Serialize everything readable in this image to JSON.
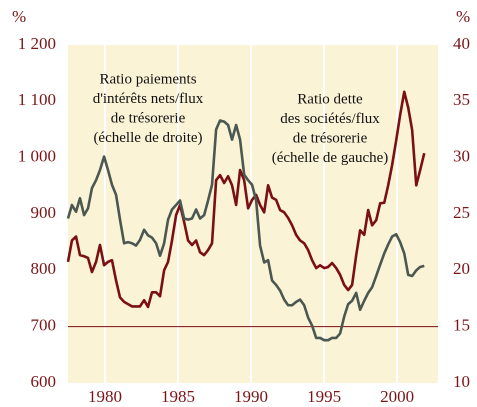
{
  "chart_data": {
    "type": "line",
    "y_unit": "%",
    "y2_unit": "%",
    "annotations": [
      {
        "lines": [
          "Ratio paiements",
          "d'intérêts nets/flux",
          "de trésorerie",
          "(échelle de droite)"
        ]
      },
      {
        "lines": [
          "Ratio dette",
          "des sociétés/flux",
          "de trésorerie",
          "(échelle de gauche)"
        ]
      }
    ],
    "x": [
      1977.47,
      1977.74,
      1978.02,
      1978.29,
      1978.57,
      1978.84,
      1979.11,
      1979.39,
      1979.66,
      1979.94,
      1980.21,
      1980.48,
      1980.76,
      1981.03,
      1981.31,
      1981.58,
      1981.85,
      1982.13,
      1982.4,
      1982.68,
      1982.95,
      1983.22,
      1983.5,
      1983.77,
      1984.05,
      1984.32,
      1984.59,
      1984.87,
      1985.14,
      1985.42,
      1985.69,
      1985.96,
      1986.24,
      1986.51,
      1986.79,
      1987.06,
      1987.33,
      1987.61,
      1987.88,
      1988.16,
      1988.43,
      1988.7,
      1988.98,
      1989.25,
      1989.53,
      1989.8,
      1990.07,
      1990.35,
      1990.62,
      1990.9,
      1991.17,
      1991.44,
      1991.72,
      1991.99,
      1992.27,
      1992.54,
      1992.81,
      1993.09,
      1993.36,
      1993.64,
      1993.91,
      1994.18,
      1994.46,
      1994.73,
      1995.01,
      1995.28,
      1995.55,
      1995.83,
      1996.1,
      1996.38,
      1996.65,
      1996.92,
      1997.2,
      1997.47,
      1997.75,
      1998.02,
      1998.29,
      1998.57,
      1998.84,
      1999.12,
      1999.39,
      1999.66,
      1999.94,
      2000.21,
      2000.49,
      2000.76,
      2001.03,
      2001.31,
      2001.58,
      2001.86
    ],
    "series": [
      {
        "color": "#7a0f14",
        "values": [
          815,
          853,
          860,
          827,
          825,
          822,
          797,
          815,
          845,
          809,
          815,
          818,
          782,
          752,
          744,
          740,
          736,
          736,
          736,
          747,
          735,
          761,
          761,
          754,
          800,
          815,
          853,
          898,
          916,
          886,
          853,
          845,
          853,
          832,
          827,
          836,
          848,
          960,
          969,
          955,
          967,
          951,
          916,
          978,
          960,
          910,
          925,
          934,
          916,
          903,
          951,
          929,
          925,
          907,
          903,
          893,
          880,
          863,
          853,
          848,
          836,
          818,
          804,
          809,
          804,
          806,
          813,
          804,
          792,
          774,
          765,
          774,
          827,
          871,
          863,
          907,
          880,
          889,
          919,
          920,
          951,
          987,
          1031,
          1076,
          1117,
          1089,
          1049,
          951,
          978,
          1008
        ]
      },
      {
        "color": "#4b5751",
        "axis": "y2",
        "values": [
          24.6,
          25.8,
          25.2,
          26.4,
          24.9,
          25.5,
          27.3,
          28.0,
          28.9,
          30.1,
          28.9,
          27.6,
          26.7,
          24.5,
          22.4,
          22.5,
          22.4,
          22.2,
          22.7,
          23.6,
          23.1,
          22.9,
          22.4,
          21.3,
          22.4,
          24.5,
          25.4,
          25.8,
          26.2,
          24.6,
          24.5,
          24.6,
          25.4,
          24.6,
          24.9,
          26.2,
          27.6,
          32.5,
          33.3,
          33.2,
          32.9,
          31.6,
          32.9,
          31.6,
          28.5,
          28.0,
          27.6,
          26.2,
          22.2,
          20.7,
          20.9,
          19.1,
          18.7,
          18.2,
          17.4,
          16.9,
          16.9,
          17.2,
          17.4,
          16.9,
          15.8,
          15.1,
          14.0,
          14.0,
          13.8,
          13.8,
          14.0,
          14.0,
          14.4,
          15.9,
          17.0,
          17.3,
          18.0,
          16.5,
          17.3,
          18.0,
          18.5,
          19.5,
          20.5,
          21.5,
          22.3,
          23.0,
          23.2,
          22.5,
          21.5,
          19.6,
          19.5,
          20.0,
          20.3,
          20.4
        ]
      }
    ],
    "reference_line": 700,
    "xlim": [
      1977.47,
      2002.8
    ],
    "xticks": [
      1980,
      1985,
      1990,
      1995,
      2000
    ],
    "ylim": [
      600,
      1200
    ],
    "yticks": [
      600,
      700,
      800,
      900,
      {
        "value": 1000,
        "label": "1 000"
      },
      {
        "value": 1100,
        "label": "1 100"
      },
      {
        "value": 1200,
        "label": "1 200"
      }
    ],
    "y2lim": [
      10,
      40
    ],
    "y2ticks": [
      10,
      15,
      20,
      25,
      30,
      35,
      40
    ],
    "grid": true,
    "background": "#fbf3d6"
  }
}
